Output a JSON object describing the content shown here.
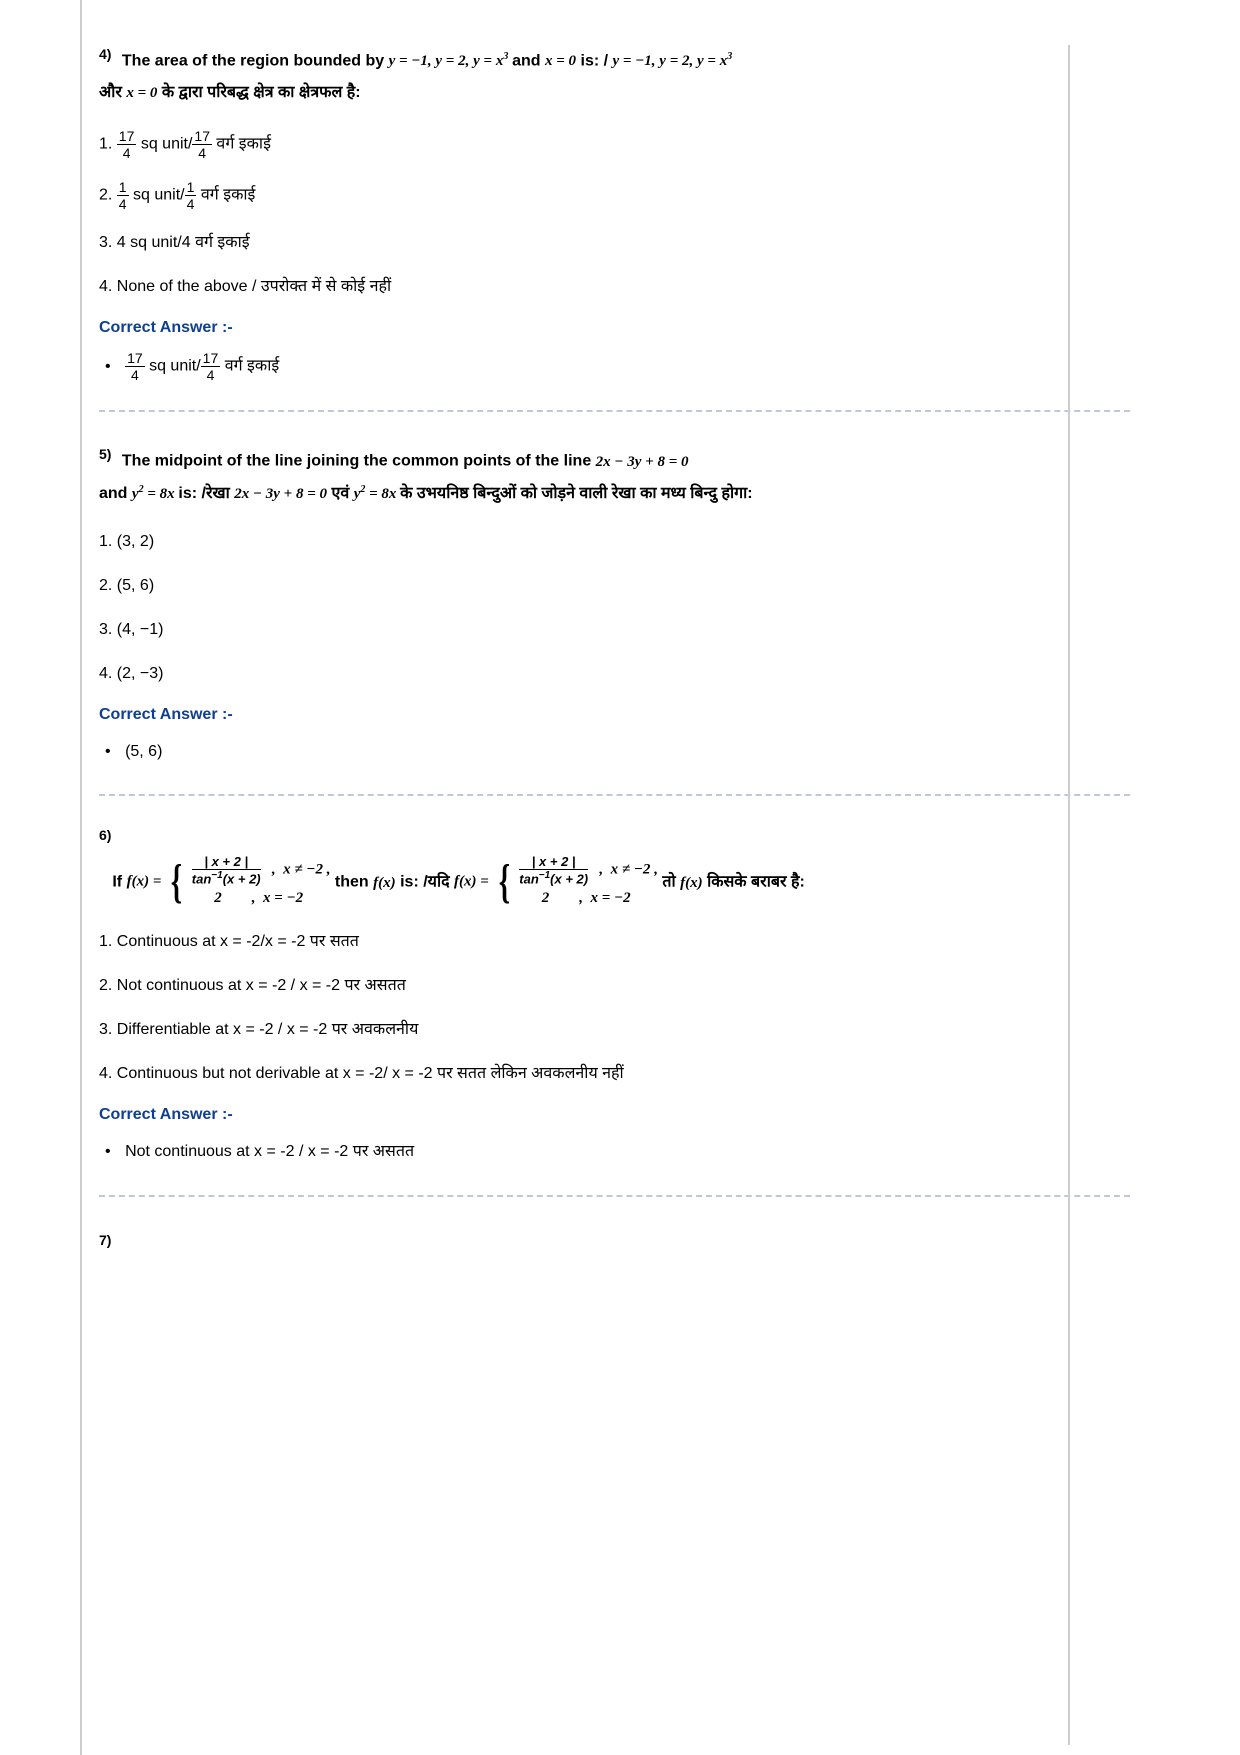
{
  "page": {
    "background_color": "#ffffff",
    "text_color": "#000000",
    "answer_color": "#0f3f8f",
    "dash_color": "#bfc8d8",
    "border_color": "#cdcdcd",
    "font_family": "Verdana, Arial, sans-serif",
    "base_font_size": 16
  },
  "q4": {
    "number": "4)",
    "text_en_1": "The area of the region bounded by",
    "eq1": "y = −1, y = 2, y = x",
    "eq1_sup": "3",
    "text_en_2": "and",
    "eq2": "x = 0",
    "text_en_3": "is: /",
    "eq3": "y = −1, y = 2, y = x",
    "eq3_sup": "3",
    "text_hi_1": "और",
    "eq4": "x = 0",
    "text_hi_2": "के द्वारा परिबद्ध क्षेत्र का क्षेत्रफल है:",
    "options": {
      "o1_num1": "17",
      "o1_den1": "4",
      "o1_mid": " sq unit/",
      "o1_num2": "17",
      "o1_den2": "4",
      "o1_hi": "  वर्ग इकाई",
      "o2_num1": "1",
      "o2_den1": "4",
      "o2_mid": " sq unit/",
      "o2_num2": "1",
      "o2_den2": "4",
      "o2_hi": " वर्ग इकाई",
      "o3": "4 sq unit/4 वर्ग इकाई",
      "o4": "None of the above / उपरोक्त में से कोई नहीं"
    },
    "answer_label": "Correct Answer :-",
    "answer_num1": "17",
    "answer_den1": "4",
    "answer_mid": " sq unit/",
    "answer_num2": "17",
    "answer_den2": "4",
    "answer_hi": "  वर्ग इकाई"
  },
  "q5": {
    "number": "5)",
    "text_en_1": "The midpoint of the line joining the common points of the line",
    "eq1": "2x − 3y + 8 = 0",
    "text_en_2": "and",
    "eq2": "y",
    "eq2_sup": "2",
    "eq2_rest": " = 8x",
    "text_en_3": "is: /रेखा",
    "eq3": "2x − 3y + 8 = 0",
    "text_hi_1": "एवं",
    "eq4": "y",
    "eq4_sup": "2",
    "eq4_rest": " = 8x",
    "text_hi_2": "के उभयनिष्ठ बिन्दुओं को जोड़ने वाली रेखा का मध्य बिन्दु होगा:",
    "options": {
      "o1": "(3, 2)",
      "o2": "(5, 6)",
      "o3": "(4, −1)",
      "o4": "(2, −3)"
    },
    "answer_label": "Correct Answer :-",
    "answer": "(5, 6)"
  },
  "q6": {
    "number": "6)",
    "if_label": "If",
    "fx_label": "f(x) =",
    "piece_top_num": "| x + 2 |",
    "piece_top_den": "tan",
    "piece_top_den_sup": "−1",
    "piece_top_den_rest": "(x + 2)",
    "piece_top_cond": "x ≠ −2",
    "piece_bot_val": "2",
    "piece_bot_cond": "x = −2",
    "then_text": "then",
    "fx2": "f(x)",
    "is_text": "is: /यदि",
    "to_text": "तो",
    "fx3": "f(x)",
    "hi_text": "किसके बराबर है:",
    "options": {
      "o1": "Continuous at x = -2/x = -2 पर सतत",
      "o2": "Not continuous at x = -2 / x = -2 पर असतत",
      "o3": "Differentiable at x = -2 / x = -2 पर अवकलनीय",
      "o4": "Continuous but not derivable at x = -2/ x = -2 पर सतत लेकिन अवकलनीय नहीं"
    },
    "answer_label": "Correct Answer :-",
    "answer": "Not continuous at x = -2 / x = -2 पर असतत"
  },
  "q7": {
    "number": "7)"
  }
}
